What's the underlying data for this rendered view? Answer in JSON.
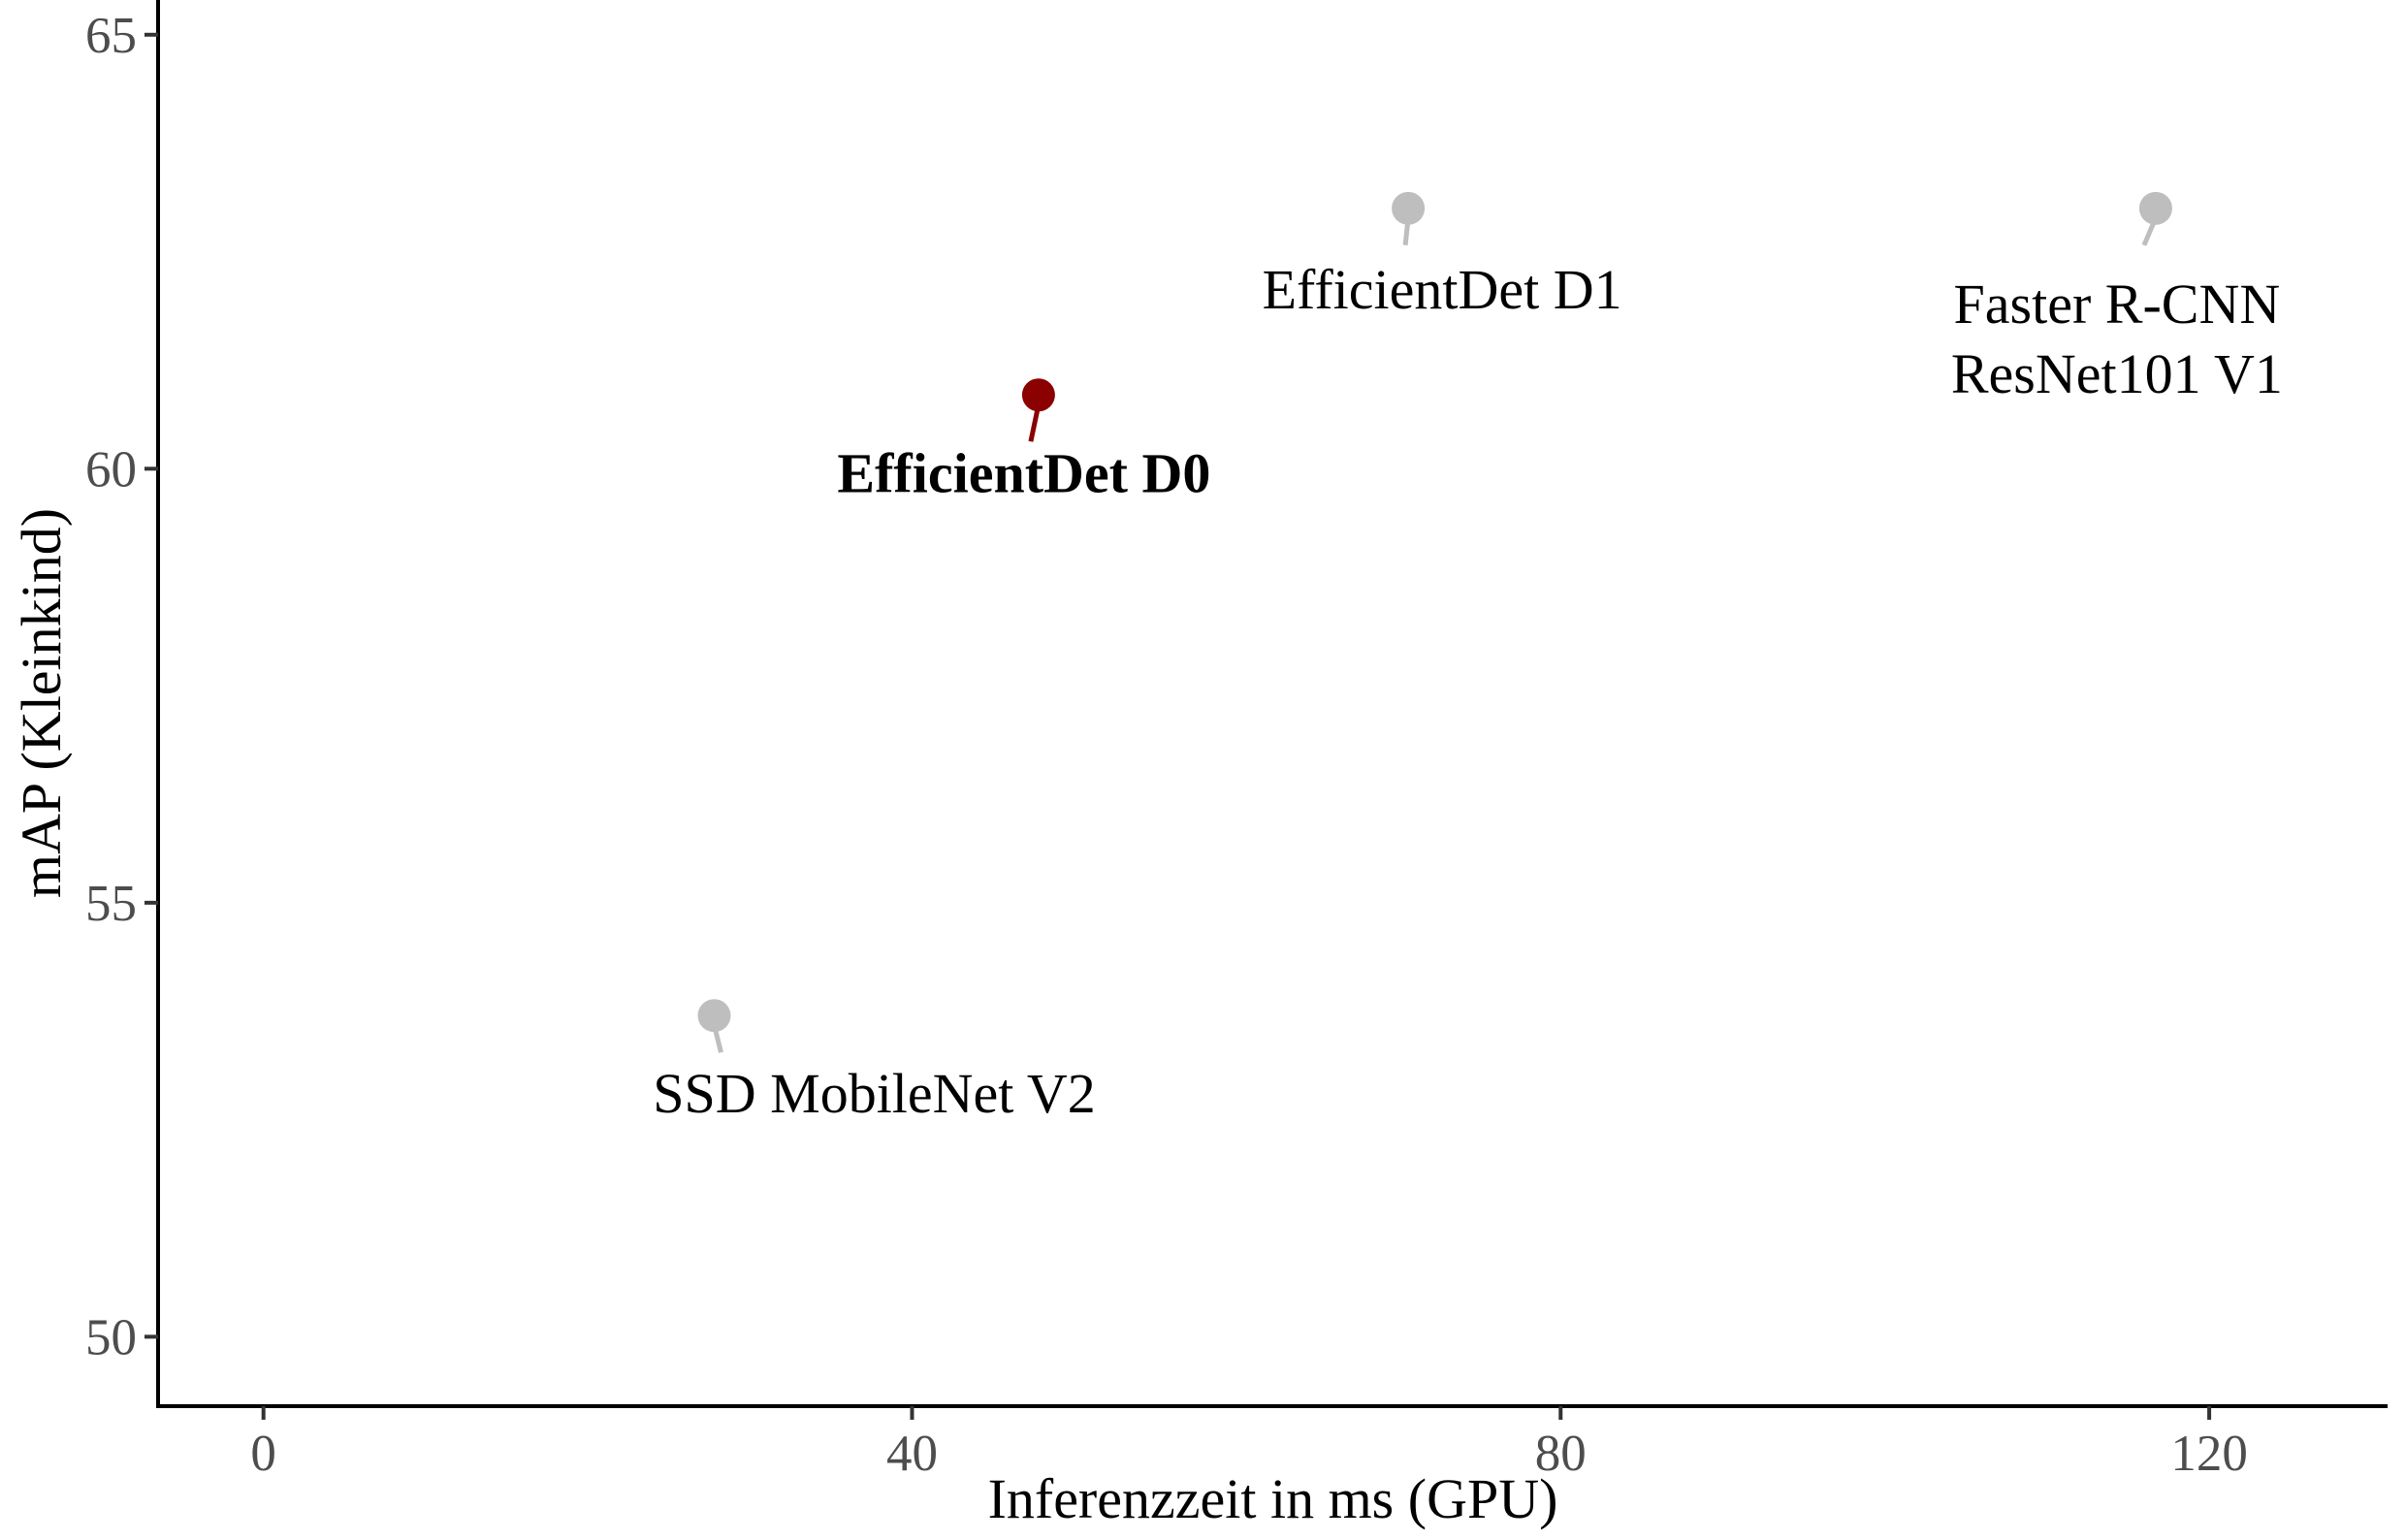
{
  "chart_data": {
    "type": "scatter",
    "xlabel": "Inferenzzeit in ms (GPU)",
    "ylabel": "mAP (Kleinkind)",
    "xlim": [
      -6.5,
      131
    ],
    "ylim": [
      49.2,
      65.4
    ],
    "x_ticks": [
      0,
      40,
      80,
      120
    ],
    "y_ticks": [
      50,
      55,
      60,
      65
    ],
    "grid": false,
    "points": [
      {
        "label": [
          "SSD MobileNet V2"
        ],
        "x": 27.8,
        "y": 53.7,
        "color": "#bebebe",
        "highlight": false
      },
      {
        "label": [
          "EfficientDet D0"
        ],
        "x": 47.8,
        "y": 60.85,
        "color": "#8b0000",
        "highlight": true
      },
      {
        "label": [
          "EfficientDet D1"
        ],
        "x": 70.6,
        "y": 63.0,
        "color": "#bebebe",
        "highlight": false
      },
      {
        "label": [
          "Faster R-CNN",
          "ResNet101 V1"
        ],
        "x": 116.7,
        "y": 63.0,
        "color": "#bebebe",
        "highlight": false
      }
    ]
  }
}
